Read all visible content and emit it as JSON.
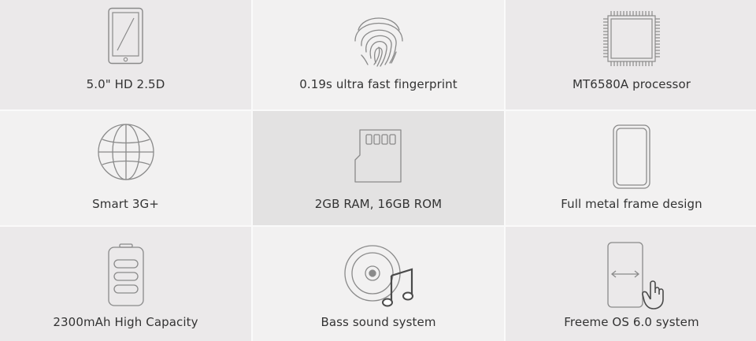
{
  "features": [
    {
      "icon": "phone-diagonal-icon",
      "label": "5.0\" HD 2.5D"
    },
    {
      "icon": "fingerprint-icon",
      "label": "0.19s ultra fast fingerprint"
    },
    {
      "icon": "processor-chip-icon",
      "label": "MT6580A processor"
    },
    {
      "icon": "globe-icon",
      "label": "Smart 3G+"
    },
    {
      "icon": "memory-card-icon",
      "label": "2GB RAM, 16GB ROM"
    },
    {
      "icon": "phone-frame-icon",
      "label": "Full metal frame design"
    },
    {
      "icon": "battery-icon",
      "label": "2300mAh High Capacity"
    },
    {
      "icon": "speaker-music-icon",
      "label": "Bass sound system"
    },
    {
      "icon": "phone-swipe-hand-icon",
      "label": "Freeme OS 6.0 system"
    }
  ],
  "colors": {
    "cell_bg": "#ebe9ea",
    "cell_bg_light": "#f2f1f1",
    "cell_bg_dark": "#e3e2e2",
    "divider": "#fafafa",
    "text": "#333333",
    "icon_stroke": "#8a8a8a"
  }
}
